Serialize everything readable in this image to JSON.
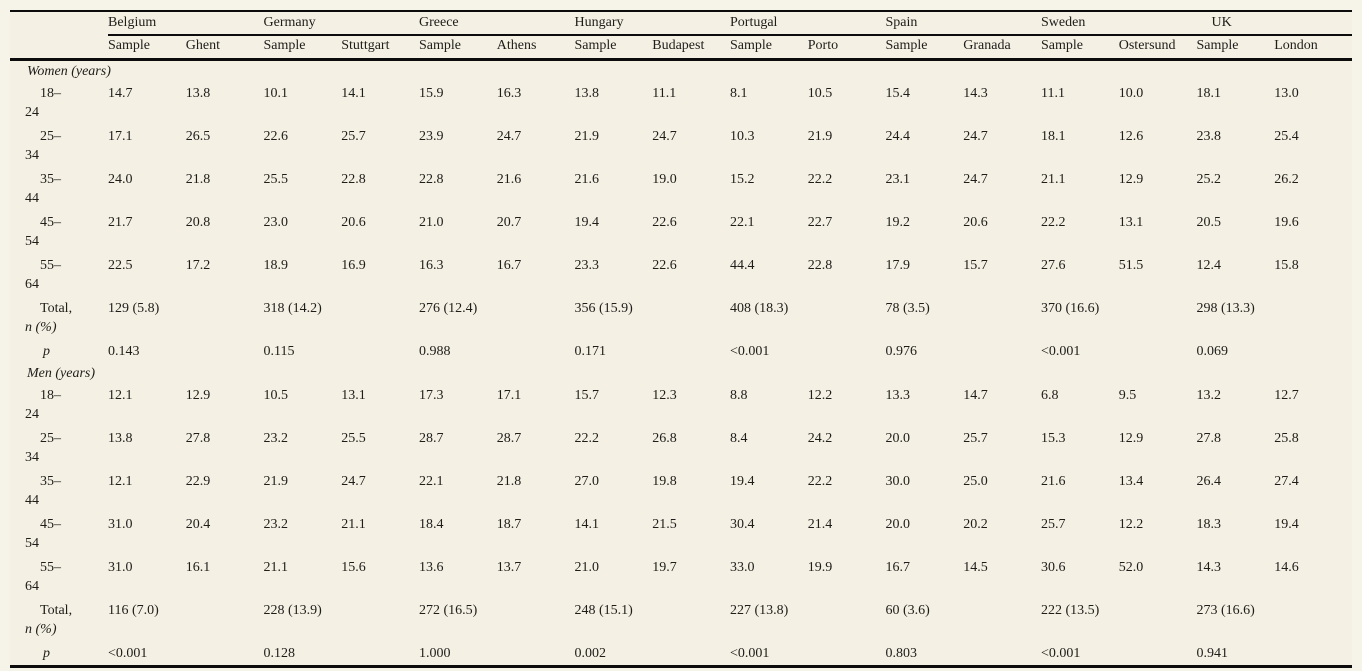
{
  "page": {
    "background_color": "#f4f0e4",
    "text_color": "#1e1d1a",
    "rule_color": "#0c0c0c"
  },
  "table": {
    "country_groups": [
      {
        "name": "Belgium",
        "columns": [
          "Sample",
          "Ghent"
        ]
      },
      {
        "name": "Germany",
        "columns": [
          "Sample",
          "Stuttgart"
        ]
      },
      {
        "name": "Greece",
        "columns": [
          "Sample",
          "Athens"
        ]
      },
      {
        "name": "Hungary",
        "columns": [
          "Sample",
          "Budapest"
        ]
      },
      {
        "name": "Portugal",
        "columns": [
          "Sample",
          "Porto"
        ]
      },
      {
        "name": "Spain",
        "columns": [
          "Sample",
          "Granada"
        ]
      },
      {
        "name": "Sweden",
        "columns": [
          "Sample",
          "Ostersund"
        ]
      },
      {
        "name": "UK",
        "columns": [
          "Sample",
          "London"
        ]
      }
    ],
    "sections": [
      {
        "title": "Women (years)",
        "age_rows": [
          {
            "label_line1": "18–",
            "label_line2": "24",
            "values": [
              "14.7",
              "13.8",
              "10.1",
              "14.1",
              "15.9",
              "16.3",
              "13.8",
              "11.1",
              "8.1",
              "10.5",
              "15.4",
              "14.3",
              "11.1",
              "10.0",
              "18.1",
              "13.0"
            ]
          },
          {
            "label_line1": "25–",
            "label_line2": "34",
            "values": [
              "17.1",
              "26.5",
              "22.6",
              "25.7",
              "23.9",
              "24.7",
              "21.9",
              "24.7",
              "10.3",
              "21.9",
              "24.4",
              "24.7",
              "18.1",
              "12.6",
              "23.8",
              "25.4"
            ]
          },
          {
            "label_line1": "35–",
            "label_line2": "44",
            "values": [
              "24.0",
              "21.8",
              "25.5",
              "22.8",
              "22.8",
              "21.6",
              "21.6",
              "19.0",
              "15.2",
              "22.2",
              "23.1",
              "24.7",
              "21.1",
              "12.9",
              "25.2",
              "26.2"
            ]
          },
          {
            "label_line1": "45–",
            "label_line2": "54",
            "values": [
              "21.7",
              "20.8",
              "23.0",
              "20.6",
              "21.0",
              "20.7",
              "19.4",
              "22.6",
              "22.1",
              "22.7",
              "19.2",
              "20.6",
              "22.2",
              "13.1",
              "20.5",
              "19.6"
            ]
          },
          {
            "label_line1": "55–",
            "label_line2": "64",
            "values": [
              "22.5",
              "17.2",
              "18.9",
              "16.9",
              "16.3",
              "16.7",
              "23.3",
              "22.6",
              "44.4",
              "22.8",
              "17.9",
              "15.7",
              "27.6",
              "51.5",
              "12.4",
              "15.8"
            ]
          }
        ],
        "total_row": {
          "label_line1": "Total,",
          "label_line2": "n (%)",
          "values": [
            "129 (5.8)",
            "318 (14.2)",
            "276 (12.4)",
            "356 (15.9)",
            "408 (18.3)",
            "78 (3.5)",
            "370 (16.6)",
            "298 (13.3)"
          ]
        },
        "p_row": {
          "label": "p",
          "values": [
            "0.143",
            "0.115",
            "0.988",
            "0.171",
            "<0.001",
            "0.976",
            "<0.001",
            "0.069"
          ]
        }
      },
      {
        "title": "Men (years)",
        "age_rows": [
          {
            "label_line1": "18–",
            "label_line2": "24",
            "values": [
              "12.1",
              "12.9",
              "10.5",
              "13.1",
              "17.3",
              "17.1",
              "15.7",
              "12.3",
              "8.8",
              "12.2",
              "13.3",
              "14.7",
              "6.8",
              "9.5",
              "13.2",
              "12.7"
            ]
          },
          {
            "label_line1": "25–",
            "label_line2": "34",
            "values": [
              "13.8",
              "27.8",
              "23.2",
              "25.5",
              "28.7",
              "28.7",
              "22.2",
              "26.8",
              "8.4",
              "24.2",
              "20.0",
              "25.7",
              "15.3",
              "12.9",
              "27.8",
              "25.8"
            ]
          },
          {
            "label_line1": "35–",
            "label_line2": "44",
            "values": [
              "12.1",
              "22.9",
              "21.9",
              "24.7",
              "22.1",
              "21.8",
              "27.0",
              "19.8",
              "19.4",
              "22.2",
              "30.0",
              "25.0",
              "21.6",
              "13.4",
              "26.4",
              "27.4"
            ]
          },
          {
            "label_line1": "45–",
            "label_line2": "54",
            "values": [
              "31.0",
              "20.4",
              "23.2",
              "21.1",
              "18.4",
              "18.7",
              "14.1",
              "21.5",
              "30.4",
              "21.4",
              "20.0",
              "20.2",
              "25.7",
              "12.2",
              "18.3",
              "19.4"
            ]
          },
          {
            "label_line1": "55–",
            "label_line2": "64",
            "values": [
              "31.0",
              "16.1",
              "21.1",
              "15.6",
              "13.6",
              "13.7",
              "21.0",
              "19.7",
              "33.0",
              "19.9",
              "16.7",
              "14.5",
              "30.6",
              "52.0",
              "14.3",
              "14.6"
            ]
          }
        ],
        "total_row": {
          "label_line1": "Total,",
          "label_line2": "n (%)",
          "values": [
            "116 (7.0)",
            "228 (13.9)",
            "272 (16.5)",
            "248 (15.1)",
            "227 (13.8)",
            "60 (3.6)",
            "222 (13.5)",
            "273 (16.6)"
          ]
        },
        "p_row": {
          "label": "p",
          "values": [
            "<0.001",
            "0.128",
            "1.000",
            "0.002",
            "<0.001",
            "0.803",
            "<0.001",
            "0.941"
          ]
        }
      }
    ]
  }
}
